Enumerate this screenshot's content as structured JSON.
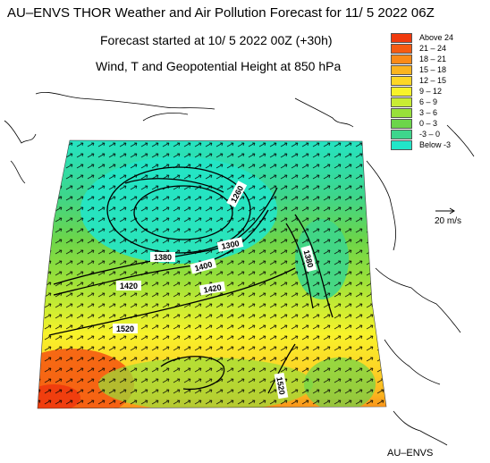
{
  "header": {
    "title": "AU–ENVS THOR Weather and Air Pollution Forecast for 11/ 5 2022  06Z",
    "forecast_start": "Forecast started at 10/ 5 2022  00Z (+30h)",
    "field": "Wind, T and Geopotential Height at 850 hPa"
  },
  "legend": {
    "items": [
      {
        "label": "Above   24",
        "color": "#f03a0e"
      },
      {
        "label": "21 – 24",
        "color": "#f55b12"
      },
      {
        "label": "18 – 21",
        "color": "#fa8a18"
      },
      {
        "label": "15 – 18",
        "color": "#fbb41f"
      },
      {
        "label": "12 – 15",
        "color": "#fdd726"
      },
      {
        "label": "9 – 12",
        "color": "#f8f32a"
      },
      {
        "label": "6 –  9",
        "color": "#c8ec33"
      },
      {
        "label": "3 –  6",
        "color": "#98e03a"
      },
      {
        "label": "0 –  3",
        "color": "#6cd54a"
      },
      {
        "label": "-3 –  0",
        "color": "#3dd68c"
      },
      {
        "label": "Below   -3",
        "color": "#22e5c8"
      }
    ]
  },
  "map": {
    "contours": [
      {
        "label": "1260"
      },
      {
        "label": "1300"
      },
      {
        "label": "1380"
      },
      {
        "label": "1380"
      },
      {
        "label": "1400"
      },
      {
        "label": "1420"
      },
      {
        "label": "1420"
      },
      {
        "label": "1440"
      },
      {
        "label": "1520"
      },
      {
        "label": "1520"
      }
    ]
  },
  "scale": {
    "label": "20 m/s"
  },
  "brand": "AU–ENVS"
}
